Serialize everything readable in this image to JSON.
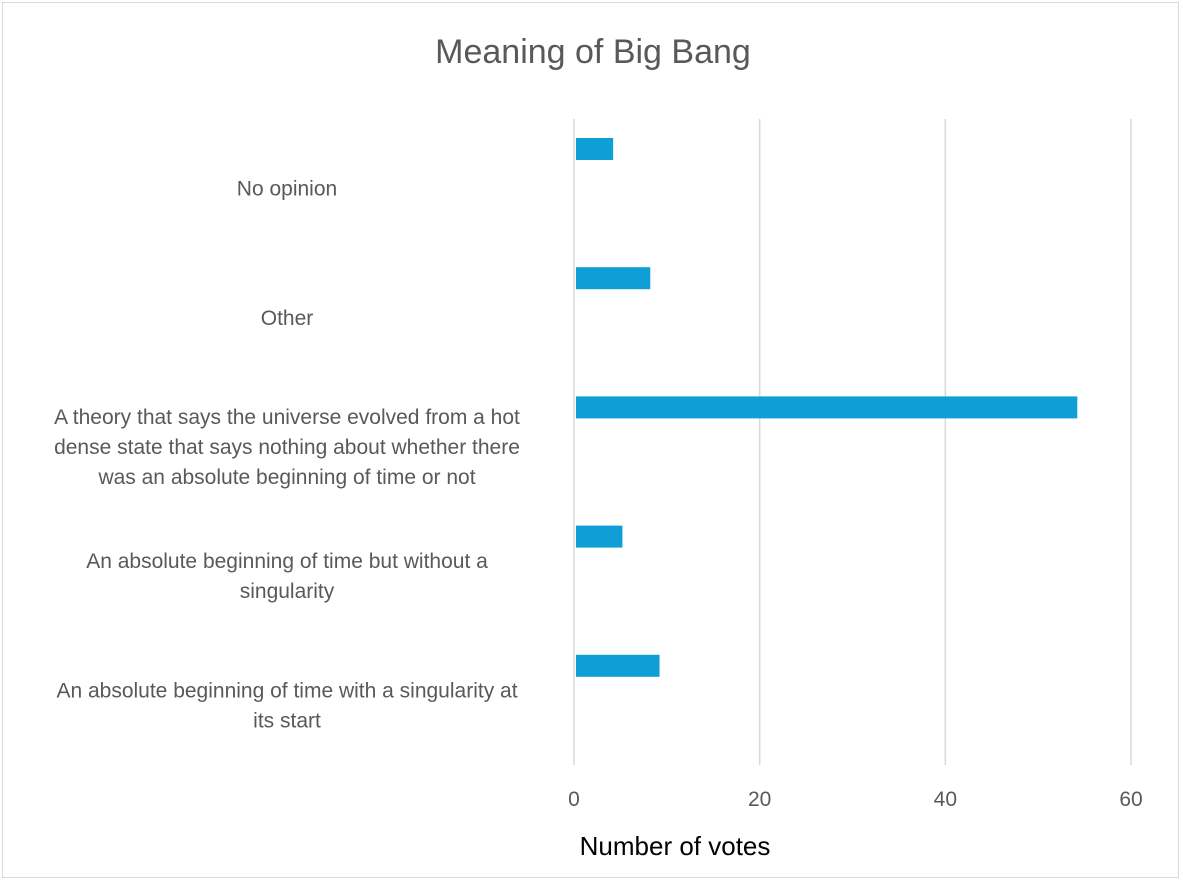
{
  "chart_data": {
    "type": "bar",
    "orientation": "horizontal",
    "title": "Meaning of Big Bang",
    "xlabel": "Number of votes",
    "ylabel": "",
    "categories": [
      "No opinion",
      "Other",
      "A theory that says the universe evolved from a hot dense state that says nothing about whether there was an absolute beginning of time or not",
      "An absolute beginning of time but without a singularity",
      "An absolute beginning of time with a singularity at its start"
    ],
    "category_label_lines": [
      [
        "No opinion"
      ],
      [
        "Other"
      ],
      [
        "A theory that says the universe evolved from a hot",
        "dense state that says nothing about whether there",
        "was an absolute beginning of time or not"
      ],
      [
        "An absolute beginning of time but without a",
        "singularity"
      ],
      [
        "An absolute beginning of time with a singularity at",
        "its start"
      ]
    ],
    "values": [
      4,
      8,
      54,
      5,
      9
    ],
    "xlim": [
      0,
      60
    ],
    "xticks": [
      "0",
      "20",
      "40",
      "60"
    ],
    "grid": true,
    "legend": "none",
    "bar_color": "#0f9ed5"
  }
}
